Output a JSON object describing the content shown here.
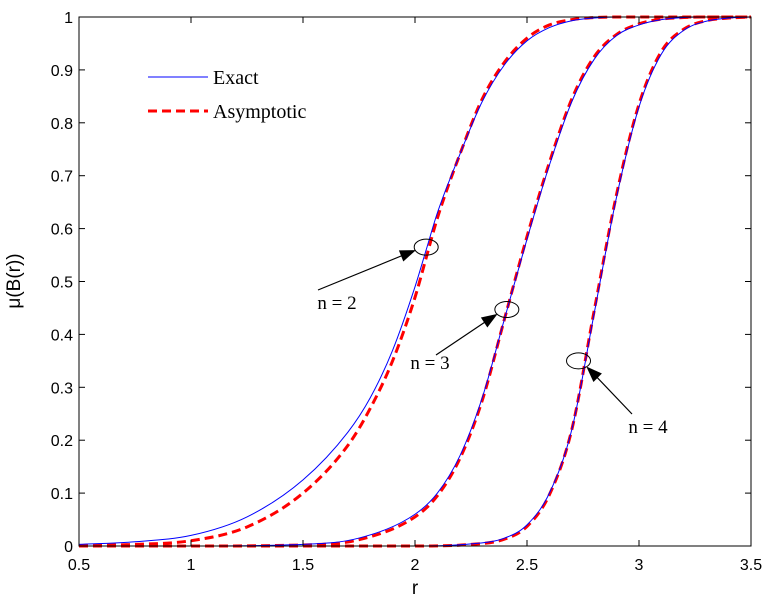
{
  "chart_data": {
    "type": "line",
    "title": "",
    "xlabel": "r",
    "ylabel": "μ(B(r))",
    "xlim": [
      0.5,
      3.5
    ],
    "ylim": [
      0,
      1
    ],
    "xticks": [
      "0.5",
      "1",
      "1.5",
      "2",
      "2.5",
      "3",
      "3.5"
    ],
    "yticks": [
      "0",
      "0.1",
      "0.2",
      "0.3",
      "0.4",
      "0.5",
      "0.6",
      "0.7",
      "0.8",
      "0.9",
      "1"
    ],
    "legend": {
      "position": "top-left",
      "entries": [
        "Exact",
        "Asymptotic"
      ]
    },
    "colors": {
      "exact": "#0000ff",
      "asymptotic": "#ff0000"
    },
    "series": [
      {
        "name": "Exact",
        "n": 2,
        "style": "solid",
        "x": [
          0.5,
          0.75,
          1.0,
          1.25,
          1.5,
          1.7,
          1.8,
          1.9,
          2.0,
          2.05,
          2.1,
          2.2,
          2.3,
          2.4,
          2.5,
          2.6,
          2.7,
          2.8,
          2.9,
          3.0,
          3.5
        ],
        "y": [
          0.003,
          0.008,
          0.02,
          0.055,
          0.125,
          0.215,
          0.28,
          0.37,
          0.49,
          0.56,
          0.63,
          0.74,
          0.84,
          0.91,
          0.955,
          0.98,
          0.993,
          0.998,
          1.0,
          1.0,
          1.0
        ]
      },
      {
        "name": "Asymptotic",
        "n": 2,
        "style": "dashed",
        "x": [
          0.5,
          0.75,
          1.0,
          1.25,
          1.5,
          1.7,
          1.8,
          1.9,
          2.0,
          2.05,
          2.1,
          2.2,
          2.3,
          2.4,
          2.5,
          2.6,
          2.7,
          2.8,
          2.9,
          3.0,
          3.5
        ],
        "y": [
          0.001,
          0.003,
          0.01,
          0.036,
          0.1,
          0.19,
          0.26,
          0.35,
          0.47,
          0.545,
          0.62,
          0.74,
          0.845,
          0.915,
          0.96,
          0.985,
          0.995,
          0.999,
          1.0,
          1.0,
          1.0
        ]
      },
      {
        "name": "Exact",
        "n": 3,
        "style": "solid",
        "x": [
          0.5,
          1.0,
          1.5,
          1.75,
          2.0,
          2.1,
          2.2,
          2.3,
          2.4,
          2.5,
          2.6,
          2.7,
          2.8,
          2.9,
          3.0,
          3.1,
          3.2,
          3.3,
          3.5
        ],
        "y": [
          0.0,
          0.0,
          0.003,
          0.015,
          0.06,
          0.1,
          0.17,
          0.28,
          0.43,
          0.58,
          0.72,
          0.84,
          0.92,
          0.965,
          0.985,
          0.995,
          0.999,
          1.0,
          1.0
        ]
      },
      {
        "name": "Asymptotic",
        "n": 3,
        "style": "dashed",
        "x": [
          0.5,
          1.0,
          1.5,
          1.75,
          2.0,
          2.1,
          2.2,
          2.3,
          2.4,
          2.5,
          2.6,
          2.7,
          2.8,
          2.9,
          3.0,
          3.1,
          3.2,
          3.3,
          3.5
        ],
        "y": [
          0.0,
          0.0,
          0.002,
          0.012,
          0.055,
          0.095,
          0.165,
          0.275,
          0.43,
          0.585,
          0.725,
          0.845,
          0.925,
          0.967,
          0.987,
          0.996,
          0.999,
          1.0,
          1.0
        ]
      },
      {
        "name": "Exact",
        "n": 4,
        "style": "solid",
        "x": [
          0.5,
          1.0,
          1.5,
          2.0,
          2.25,
          2.4,
          2.5,
          2.6,
          2.7,
          2.8,
          2.9,
          3.0,
          3.1,
          3.2,
          3.3,
          3.4,
          3.5
        ],
        "y": [
          0.0,
          0.0,
          0.0,
          0.0,
          0.004,
          0.015,
          0.04,
          0.1,
          0.22,
          0.44,
          0.66,
          0.83,
          0.93,
          0.975,
          0.992,
          0.998,
          1.0
        ]
      },
      {
        "name": "Asymptotic",
        "n": 4,
        "style": "dashed",
        "x": [
          0.5,
          1.0,
          1.5,
          2.0,
          2.25,
          2.4,
          2.5,
          2.6,
          2.7,
          2.8,
          2.9,
          3.0,
          3.1,
          3.2,
          3.3,
          3.4,
          3.5
        ],
        "y": [
          0.0,
          0.0,
          0.0,
          0.0,
          0.003,
          0.013,
          0.037,
          0.097,
          0.22,
          0.445,
          0.665,
          0.835,
          0.935,
          0.977,
          0.993,
          0.998,
          1.0
        ]
      }
    ],
    "annotations": [
      {
        "text": "n = 2",
        "target": [
          2.05,
          0.565
        ]
      },
      {
        "text": "n = 3",
        "target": [
          2.41,
          0.447
        ]
      },
      {
        "text": "n = 4",
        "target": [
          2.73,
          0.35
        ]
      }
    ]
  }
}
